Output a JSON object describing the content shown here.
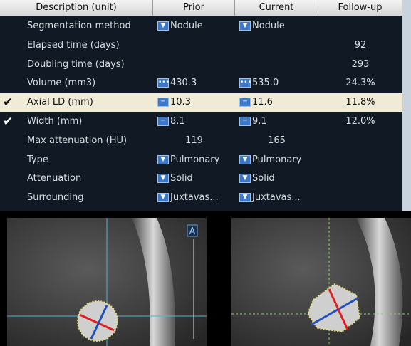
{
  "table": {
    "headers": [
      "Description (unit)",
      "Prior",
      "Current",
      "Follow-up"
    ],
    "rows": [
      {
        "label": "Segmentation method",
        "prior": "Nodule",
        "current": "Nodule",
        "control": "dropdown"
      },
      {
        "label": "Elapsed time (days)",
        "followup": "92"
      },
      {
        "label": "Doubling time (days)",
        "followup": "293"
      },
      {
        "label": "Volume (mm3)",
        "prior": "430.3",
        "current": "535.0",
        "followup": "24.3%",
        "control": "more"
      },
      {
        "label": "Axial LD (mm)",
        "prior": "10.3",
        "current": "11.6",
        "followup": "11.8%",
        "control": "ruler",
        "checked": true,
        "selected": true
      },
      {
        "label": "Width (mm)",
        "prior": "8.1",
        "current": "9.1",
        "followup": "12.0%",
        "control": "ruler",
        "checked": true
      },
      {
        "label": "Max attenuation (HU)",
        "prior": "119",
        "current": "165"
      },
      {
        "label": "Type",
        "prior": "Pulmonary",
        "current": "Pulmonary",
        "control": "dropdown"
      },
      {
        "label": "Attenuation",
        "prior": "Solid",
        "current": "Solid",
        "control": "dropdown"
      },
      {
        "label": "Surrounding",
        "prior": "Juxtavas...",
        "current": "Juxtavas...",
        "control": "dropdown"
      }
    ]
  },
  "images": {
    "marker": "A"
  }
}
